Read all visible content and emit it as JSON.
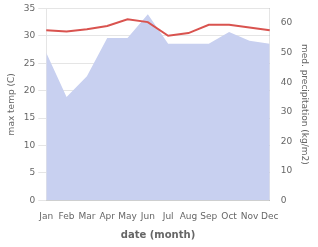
{
  "chart_data": {
    "type": "line",
    "categories": [
      "Jan",
      "Feb",
      "Mar",
      "Apr",
      "May",
      "Jun",
      "Jul",
      "Aug",
      "Sep",
      "Oct",
      "Nov",
      "Dec"
    ],
    "series": [
      {
        "type": "area",
        "axis": "y2",
        "color": "#c8d0f0",
        "values": [
          50,
          35,
          42,
          55,
          55,
          63,
          53,
          53,
          53,
          57,
          54,
          53
        ]
      },
      {
        "type": "line",
        "color": "#d9534f",
        "values": [
          31,
          30.8,
          31.2,
          31.8,
          33,
          32.5,
          30.0,
          30.5,
          32.0,
          32.0,
          31.5,
          31.0
        ]
      }
    ],
    "xlabel": "date (month)",
    "ylabel": "max temp (C)",
    "y2label": "med. precipitation (kg/m2)",
    "ylim": [
      0,
      35
    ],
    "yticks": [
      0,
      5,
      10,
      15,
      20,
      25,
      30,
      35
    ],
    "y2lim": [
      0,
      65
    ],
    "y2ticks": [
      0,
      10,
      20,
      30,
      40,
      50,
      60
    ],
    "grid": true
  }
}
